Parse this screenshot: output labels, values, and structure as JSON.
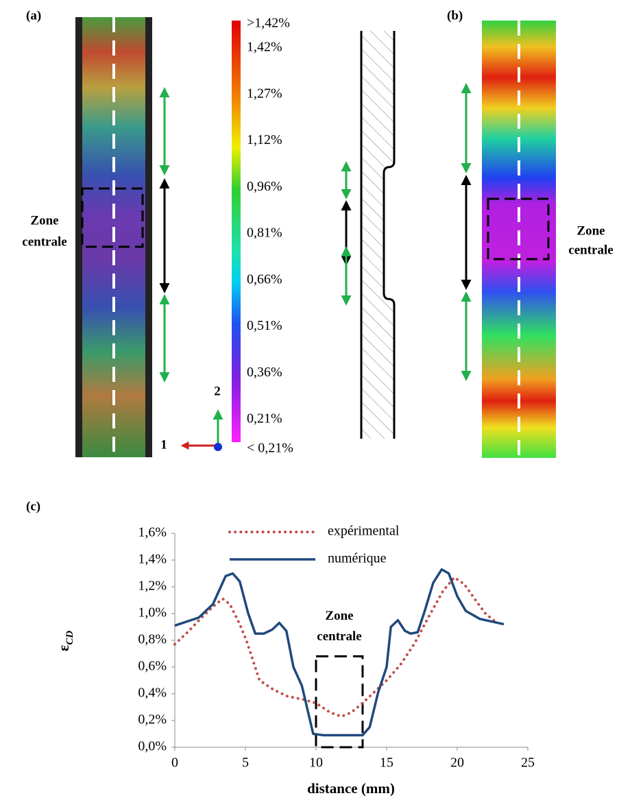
{
  "panel_a": {
    "label": "(a)",
    "zone_label": [
      "Zone",
      "centrale"
    ],
    "axis_1": "1",
    "axis_2": "2"
  },
  "panel_b": {
    "label": "(b)",
    "zone_label": [
      "Zone",
      "centrale"
    ]
  },
  "colorbar_labels": [
    ">1,42%",
    "1,42%",
    "1,27%",
    "1,12%",
    "0,96%",
    "0,81%",
    "0,66%",
    "0,51%",
    "0,36%",
    "0,21%",
    "< 0,21%"
  ],
  "chart_data": {
    "type": "line",
    "panel_label": "(c)",
    "xlabel": "distance (mm)",
    "ylabel": "ε",
    "ylabel_sub": "CD",
    "xlim": [
      0,
      25
    ],
    "ylim": [
      0,
      1.6
    ],
    "xticks": [
      0,
      5,
      10,
      15,
      20,
      25
    ],
    "yticks": [
      {
        "value": 0,
        "label": "0,0%"
      },
      {
        "value": 0.2,
        "label": "0,2%"
      },
      {
        "value": 0.4,
        "label": "0,4%"
      },
      {
        "value": 0.6,
        "label": "0,6%"
      },
      {
        "value": 0.8,
        "label": "0,8%"
      },
      {
        "value": 1.0,
        "label": "1,0%"
      },
      {
        "value": 1.2,
        "label": "1,2%"
      },
      {
        "value": 1.4,
        "label": "1,4%"
      },
      {
        "value": 1.6,
        "label": "1,6%"
      }
    ],
    "series": [
      {
        "name": "expérimental",
        "color": "#c0504d",
        "style": "dotted",
        "x": [
          0,
          1,
          1.9,
          2.9,
          3.4,
          3.9,
          4.6,
          5.1,
          6,
          7,
          8,
          9,
          10,
          11,
          11.8,
          12.5,
          13.3,
          14,
          15,
          16,
          17,
          18,
          19,
          19.8,
          20.5,
          21.3,
          22,
          22.8
        ],
        "values": [
          0.77,
          0.87,
          0.97,
          1.07,
          1.11,
          1.07,
          0.92,
          0.79,
          0.5,
          0.43,
          0.38,
          0.36,
          0.33,
          0.26,
          0.23,
          0.26,
          0.33,
          0.4,
          0.5,
          0.62,
          0.78,
          0.98,
          1.17,
          1.27,
          1.22,
          1.1,
          1.0,
          0.93
        ]
      },
      {
        "name": "numérique",
        "color": "#1f497d",
        "style": "solid",
        "x": [
          0,
          1.7,
          2.7,
          3.6,
          4.1,
          4.6,
          5.2,
          5.7,
          6.3,
          6.9,
          7.4,
          7.9,
          8.4,
          9.0,
          9.8,
          10.5,
          12,
          13.3,
          13.8,
          14.4,
          15,
          15.3,
          15.8,
          16.3,
          16.7,
          17.2,
          17.7,
          18.3,
          18.9,
          19.4,
          20,
          20.6,
          21.6,
          23.3
        ],
        "values": [
          0.91,
          0.97,
          1.07,
          1.28,
          1.3,
          1.24,
          1.0,
          0.85,
          0.85,
          0.88,
          0.93,
          0.87,
          0.6,
          0.46,
          0.1,
          0.09,
          0.09,
          0.09,
          0.15,
          0.41,
          0.6,
          0.9,
          0.95,
          0.87,
          0.85,
          0.86,
          1.02,
          1.23,
          1.33,
          1.3,
          1.13,
          1.02,
          0.96,
          0.92
        ]
      }
    ],
    "zone": {
      "label": [
        "Zone",
        "centrale"
      ],
      "x": [
        10,
        13.3
      ],
      "y": [
        0,
        0.68
      ]
    }
  }
}
